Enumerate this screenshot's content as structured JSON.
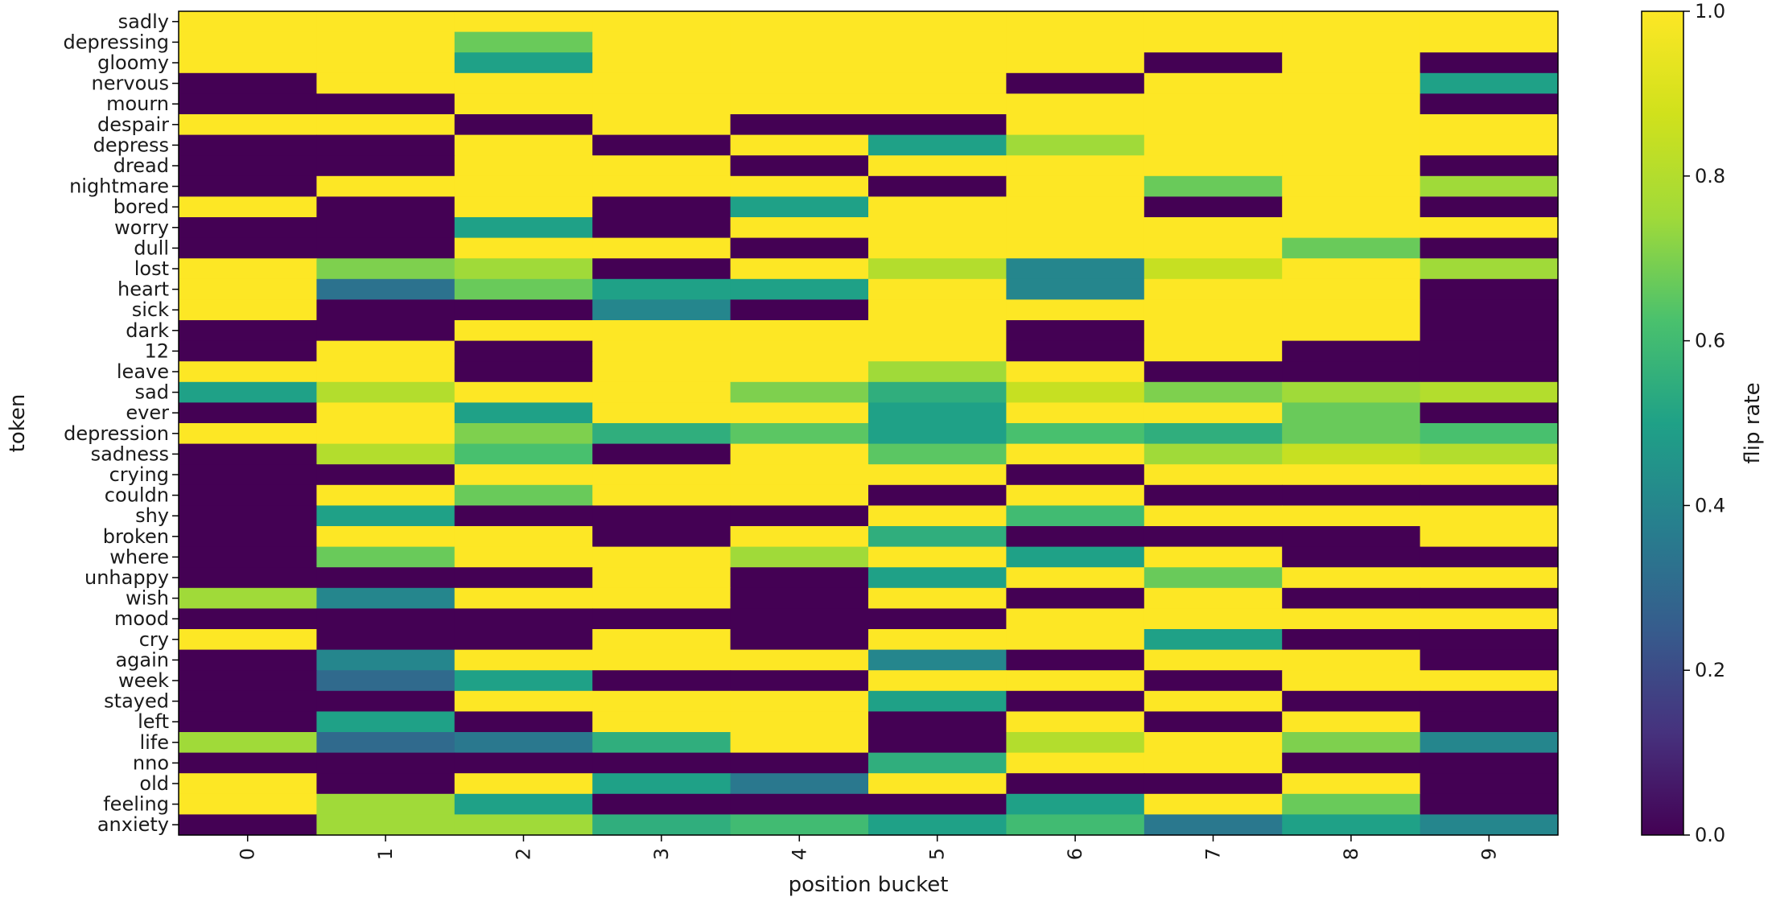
{
  "chart_data": {
    "type": "heatmap",
    "title": "",
    "xlabel": "position bucket",
    "ylabel": "token",
    "colorbar_label": "flip rate",
    "colormap": "viridis",
    "vmin": 0.0,
    "vmax": 1.0,
    "colorbar_ticks": [
      "0.0",
      "0.2",
      "0.4",
      "0.6",
      "0.8",
      "1.0"
    ],
    "x_categories": [
      "0",
      "1",
      "2",
      "3",
      "4",
      "5",
      "6",
      "7",
      "8",
      "9"
    ],
    "y_categories": [
      "sadly",
      "depressing",
      "gloomy",
      "nervous",
      "mourn",
      "despair",
      "depress",
      "dread",
      "nightmare",
      "bored",
      "worry",
      "dull",
      "lost",
      "heart",
      "sick",
      "dark",
      "12",
      "leave",
      "sad",
      "ever",
      "depression",
      "sadness",
      "crying",
      "couldn",
      "shy",
      "broken",
      "where",
      "unhappy",
      "wish",
      "mood",
      "cry",
      "again",
      "week",
      "stayed",
      "left",
      "life",
      "nno",
      "old",
      "feeling",
      "anxiety"
    ],
    "values": [
      [
        1,
        1,
        1,
        1,
        1,
        1,
        1,
        1,
        1,
        1
      ],
      [
        1,
        1,
        0.67,
        1,
        1,
        1,
        1,
        1,
        1,
        1
      ],
      [
        1,
        1,
        0.5,
        1,
        1,
        1,
        1,
        0,
        1,
        0
      ],
      [
        0,
        1,
        1,
        1,
        1,
        1,
        0,
        1,
        1,
        0.5
      ],
      [
        0,
        0,
        1,
        1,
        1,
        1,
        1,
        1,
        1,
        0
      ],
      [
        1,
        1,
        0,
        1,
        0,
        0,
        1,
        1,
        1,
        1
      ],
      [
        0,
        0,
        1,
        0,
        1,
        0.5,
        0.75,
        1,
        1,
        1
      ],
      [
        0,
        0,
        1,
        1,
        0,
        1,
        1,
        1,
        1,
        0
      ],
      [
        0,
        1,
        1,
        1,
        1,
        0,
        1,
        0.67,
        1,
        0.75
      ],
      [
        1,
        0,
        1,
        0,
        0.5,
        1,
        1,
        0,
        1,
        0
      ],
      [
        0,
        0,
        0.5,
        0,
        1,
        1,
        1,
        1,
        1,
        1
      ],
      [
        0,
        0,
        1,
        1,
        0,
        1,
        1,
        1,
        0.67,
        0
      ],
      [
        1,
        0.7,
        0.75,
        0,
        1,
        0.8,
        0.4,
        0.85,
        1,
        0.75
      ],
      [
        1,
        0.33,
        0.67,
        0.5,
        0.5,
        1,
        0.4,
        1,
        1,
        0
      ],
      [
        1,
        0,
        0,
        0.4,
        0,
        1,
        1,
        1,
        1,
        0
      ],
      [
        0,
        0,
        1,
        1,
        1,
        1,
        0,
        1,
        1,
        0
      ],
      [
        0,
        1,
        0,
        1,
        1,
        1,
        0,
        1,
        0,
        0
      ],
      [
        1,
        1,
        0,
        1,
        1,
        0.75,
        1,
        0,
        0,
        0
      ],
      [
        0.5,
        0.8,
        1,
        1,
        0.7,
        0.55,
        0.85,
        0.7,
        0.75,
        0.8
      ],
      [
        0,
        1,
        0.5,
        1,
        1,
        0.5,
        1,
        1,
        0.67,
        0
      ],
      [
        1,
        1,
        0.7,
        0.55,
        0.65,
        0.5,
        0.62,
        0.55,
        0.67,
        0.62
      ],
      [
        0,
        0.8,
        0.62,
        0,
        1,
        0.65,
        1,
        0.75,
        0.85,
        0.8
      ],
      [
        0,
        0,
        1,
        1,
        1,
        1,
        0,
        1,
        1,
        1
      ],
      [
        0,
        1,
        0.67,
        1,
        1,
        0,
        1,
        0,
        0,
        0
      ],
      [
        0,
        0.5,
        0,
        0,
        0,
        1,
        0.6,
        1,
        1,
        1
      ],
      [
        0,
        1,
        1,
        0,
        1,
        0.55,
        0,
        0,
        0,
        1
      ],
      [
        0,
        0.67,
        1,
        1,
        0.75,
        1,
        0.5,
        1,
        0,
        0
      ],
      [
        0,
        0,
        0,
        1,
        0,
        0.5,
        1,
        0.67,
        1,
        1
      ],
      [
        0.75,
        0.4,
        1,
        1,
        0,
        1,
        0,
        1,
        0,
        0
      ],
      [
        0,
        0,
        0,
        0,
        0,
        0,
        1,
        1,
        1,
        1
      ],
      [
        1,
        0,
        0,
        1,
        0,
        1,
        1,
        0.5,
        0,
        0
      ],
      [
        0,
        0.4,
        1,
        1,
        1,
        0.4,
        0,
        1,
        1,
        0
      ],
      [
        0,
        0.3,
        0.5,
        0,
        0,
        1,
        1,
        0,
        1,
        1
      ],
      [
        0,
        0,
        1,
        1,
        1,
        0.5,
        0,
        1,
        0,
        0
      ],
      [
        0,
        0.5,
        0,
        1,
        1,
        0,
        1,
        0,
        1,
        0
      ],
      [
        0.75,
        0.3,
        0.35,
        0.55,
        1,
        0,
        0.8,
        1,
        0.7,
        0.4
      ],
      [
        0,
        0,
        0,
        0,
        0,
        0.55,
        1,
        1,
        0,
        0
      ],
      [
        1,
        0,
        1,
        0.5,
        0.35,
        1,
        0,
        0,
        1,
        0
      ],
      [
        1,
        0.75,
        0.5,
        0,
        0,
        0,
        0.5,
        1,
        0.67,
        0
      ],
      [
        0,
        0.75,
        0.75,
        0.55,
        0.6,
        0.5,
        0.6,
        0.35,
        0.5,
        0.4
      ]
    ]
  }
}
